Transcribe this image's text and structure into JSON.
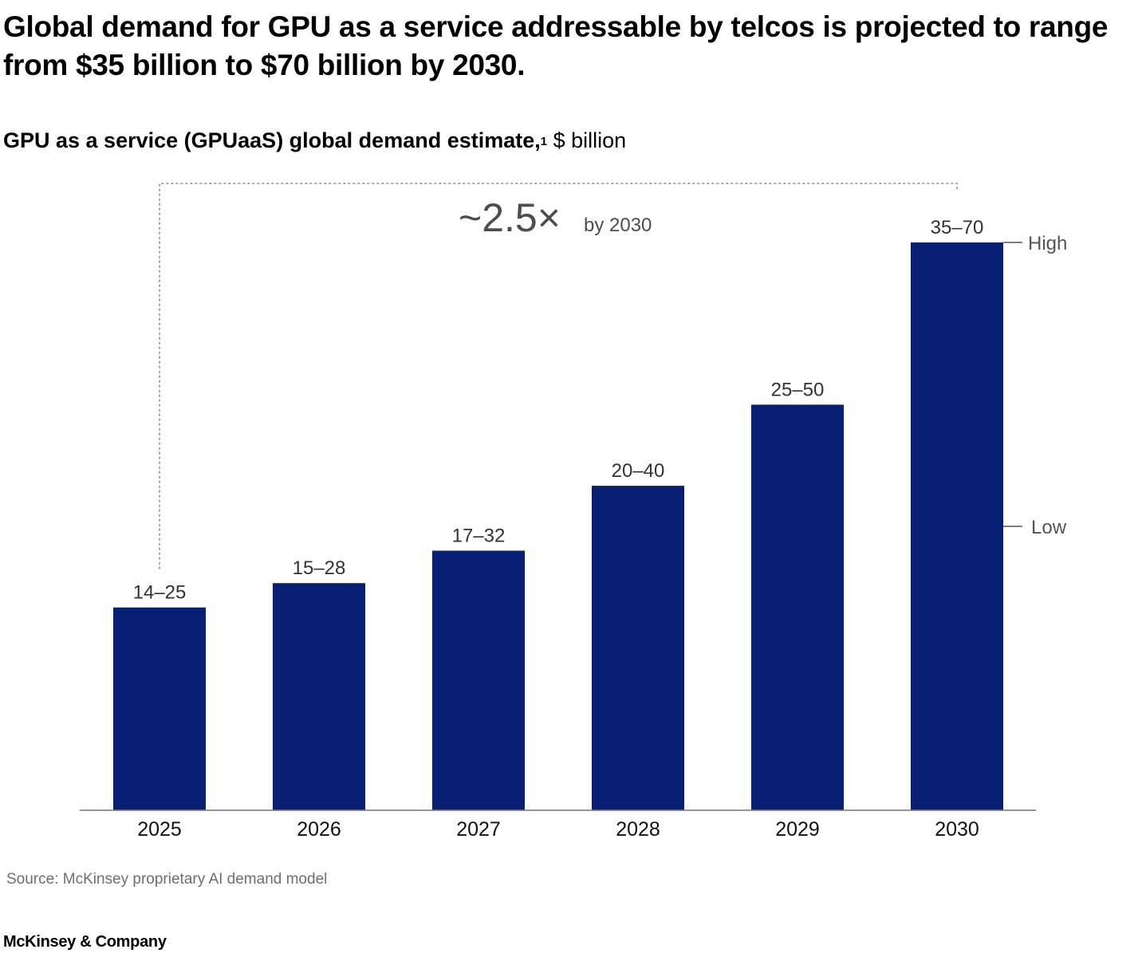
{
  "headline": "Global demand for GPU as a service addressable by telcos is projected to range from $35 billion to $70 billion by 2030.",
  "subtitle": {
    "bold": "GPU as a service (GPUaaS) global demand estimate,",
    "footnote_mark": "1",
    "unit": " $ billion"
  },
  "annotation": {
    "multiplier": "~2.5×",
    "text": "by 2030"
  },
  "legend": {
    "high": "High",
    "low": "Low"
  },
  "chart_data": {
    "type": "bar",
    "categories": [
      "2025",
      "2026",
      "2027",
      "2028",
      "2029",
      "2030"
    ],
    "series": [
      {
        "name": "High",
        "values": [
          25,
          28,
          32,
          40,
          50,
          70
        ]
      },
      {
        "name": "Low",
        "values": [
          14,
          15,
          17,
          20,
          25,
          35
        ]
      }
    ],
    "value_labels": [
      "14–25",
      "15–28",
      "17–32",
      "20–40",
      "25–50",
      "35–70"
    ],
    "ylim": [
      0,
      70
    ],
    "grid": false,
    "xlabel": "",
    "ylabel": "",
    "bar_color": "#081f73"
  },
  "source": "Source: McKinsey proprietary AI demand model",
  "brand": "McKinsey & Company"
}
